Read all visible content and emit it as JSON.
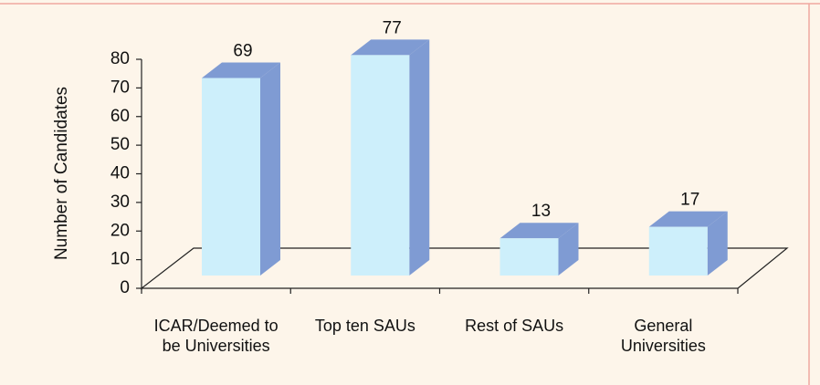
{
  "chart_data": {
    "type": "bar3d",
    "y_axis_label": "Number of Candidates",
    "categories": [
      "ICAR/Deemed to be Universities",
      "Top ten SAUs",
      "Rest of SAUs",
      "General Universities"
    ],
    "values": [
      69,
      77,
      13,
      17
    ],
    "color": "#cdeffb",
    "side_color": "#7f9bd3",
    "ylim": [
      0,
      80
    ],
    "yticks": [
      0,
      10,
      20,
      30,
      40,
      50,
      60,
      70,
      80
    ]
  }
}
